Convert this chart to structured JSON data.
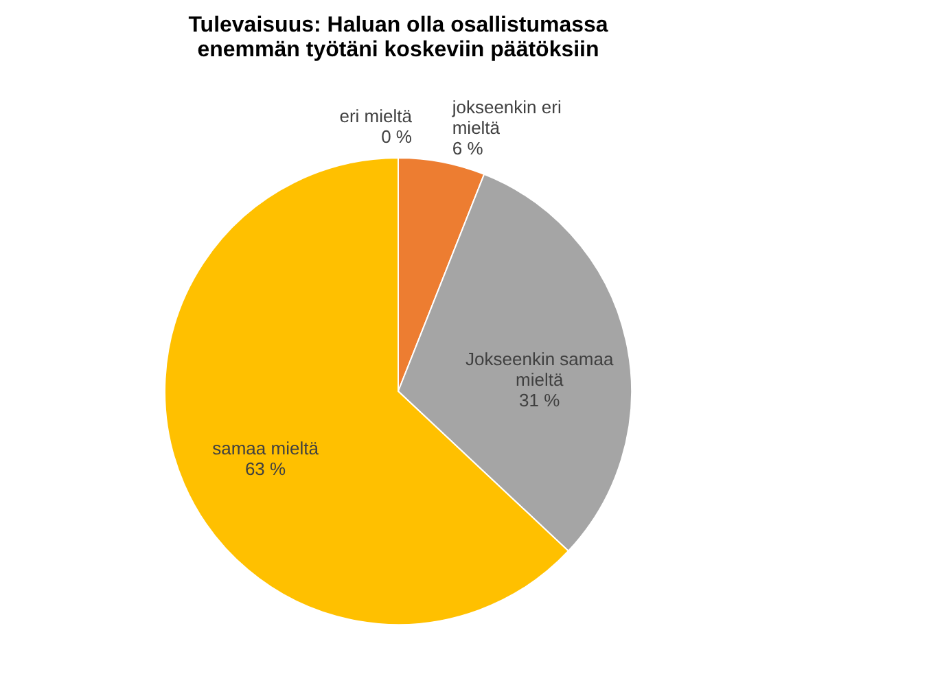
{
  "chart_data": {
    "type": "pie",
    "title": "Tulevaisuus: Haluan olla osallistumassa enemmän työtäni koskeviin päätöksiin",
    "categories": [
      "eri mieltä",
      "jokseenkin eri mieltä",
      "Jokseenkin samaa mieltä",
      "samaa mieltä"
    ],
    "values": [
      0,
      6,
      31,
      63
    ],
    "value_labels": [
      "0 %",
      "6 %",
      "31 %",
      "63 %"
    ],
    "colors": [
      "#4472c4",
      "#ed7d31",
      "#a5a5a5",
      "#ffc000"
    ]
  }
}
